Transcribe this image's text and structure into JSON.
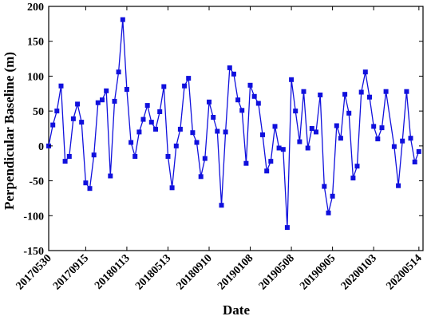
{
  "chart_data": {
    "type": "line",
    "title": "",
    "xlabel": "Date",
    "ylabel": "Perpendicular Baseline (m)",
    "ylim": [
      -150,
      200
    ],
    "yticks": [
      -150,
      -100,
      -50,
      0,
      50,
      100,
      150,
      200
    ],
    "xlim": [
      "2017-05-30",
      "2020-05-26"
    ],
    "xticks": [
      {
        "label": "20170530",
        "date": "2017-05-30"
      },
      {
        "label": "20170915",
        "date": "2017-09-15"
      },
      {
        "label": "20180113",
        "date": "2018-01-13"
      },
      {
        "label": "20180513",
        "date": "2018-05-13"
      },
      {
        "label": "20180910",
        "date": "2018-09-10"
      },
      {
        "label": "20190108",
        "date": "2019-01-08"
      },
      {
        "label": "20190508",
        "date": "2019-05-08"
      },
      {
        "label": "20190905",
        "date": "2019-09-05"
      },
      {
        "label": "20200103",
        "date": "2020-01-03"
      },
      {
        "label": "20200514",
        "date": "2020-05-14"
      }
    ],
    "grid": false,
    "legend": "none",
    "series_color": "#1010dd",
    "marker": "square",
    "series": [
      {
        "name": "",
        "points": [
          {
            "x": "2017-05-30",
            "y": 0
          },
          {
            "x": "2017-06-11",
            "y": 30
          },
          {
            "x": "2017-06-23",
            "y": 50
          },
          {
            "x": "2017-07-05",
            "y": 86
          },
          {
            "x": "2017-07-17",
            "y": -22
          },
          {
            "x": "2017-07-29",
            "y": -15
          },
          {
            "x": "2017-08-10",
            "y": 39
          },
          {
            "x": "2017-08-22",
            "y": 60
          },
          {
            "x": "2017-09-03",
            "y": 34
          },
          {
            "x": "2017-09-15",
            "y": -53
          },
          {
            "x": "2017-09-27",
            "y": -61
          },
          {
            "x": "2017-10-09",
            "y": -13
          },
          {
            "x": "2017-10-21",
            "y": 62
          },
          {
            "x": "2017-11-02",
            "y": 66
          },
          {
            "x": "2017-11-14",
            "y": 79
          },
          {
            "x": "2017-11-26",
            "y": -43
          },
          {
            "x": "2017-12-08",
            "y": 64
          },
          {
            "x": "2017-12-20",
            "y": 106
          },
          {
            "x": "2018-01-01",
            "y": 181
          },
          {
            "x": "2018-01-13",
            "y": 81
          },
          {
            "x": "2018-01-25",
            "y": 5
          },
          {
            "x": "2018-02-06",
            "y": -15
          },
          {
            "x": "2018-02-18",
            "y": 20
          },
          {
            "x": "2018-03-02",
            "y": 38
          },
          {
            "x": "2018-03-14",
            "y": 58
          },
          {
            "x": "2018-03-26",
            "y": 34
          },
          {
            "x": "2018-04-07",
            "y": 24
          },
          {
            "x": "2018-04-19",
            "y": 49
          },
          {
            "x": "2018-05-01",
            "y": 85
          },
          {
            "x": "2018-05-13",
            "y": -15
          },
          {
            "x": "2018-05-25",
            "y": -60
          },
          {
            "x": "2018-06-06",
            "y": 0
          },
          {
            "x": "2018-06-18",
            "y": 24
          },
          {
            "x": "2018-06-30",
            "y": 86
          },
          {
            "x": "2018-07-12",
            "y": 97
          },
          {
            "x": "2018-07-24",
            "y": 19
          },
          {
            "x": "2018-08-05",
            "y": 5
          },
          {
            "x": "2018-08-17",
            "y": -44
          },
          {
            "x": "2018-08-29",
            "y": -18
          },
          {
            "x": "2018-09-10",
            "y": 63
          },
          {
            "x": "2018-09-22",
            "y": 41
          },
          {
            "x": "2018-10-04",
            "y": 21
          },
          {
            "x": "2018-10-16",
            "y": -85
          },
          {
            "x": "2018-10-28",
            "y": 20
          },
          {
            "x": "2018-11-09",
            "y": 112
          },
          {
            "x": "2018-11-21",
            "y": 103
          },
          {
            "x": "2018-12-03",
            "y": 66
          },
          {
            "x": "2018-12-15",
            "y": 51
          },
          {
            "x": "2018-12-27",
            "y": -25
          },
          {
            "x": "2019-01-08",
            "y": 87
          },
          {
            "x": "2019-01-20",
            "y": 71
          },
          {
            "x": "2019-02-01",
            "y": 61
          },
          {
            "x": "2019-02-13",
            "y": 16
          },
          {
            "x": "2019-02-25",
            "y": -36
          },
          {
            "x": "2019-03-09",
            "y": -22
          },
          {
            "x": "2019-03-21",
            "y": 28
          },
          {
            "x": "2019-04-02",
            "y": -3
          },
          {
            "x": "2019-04-14",
            "y": -5
          },
          {
            "x": "2019-04-26",
            "y": -117
          },
          {
            "x": "2019-05-08",
            "y": 95
          },
          {
            "x": "2019-05-20",
            "y": 50
          },
          {
            "x": "2019-06-01",
            "y": 6
          },
          {
            "x": "2019-06-13",
            "y": 78
          },
          {
            "x": "2019-06-25",
            "y": -3
          },
          {
            "x": "2019-07-07",
            "y": 25
          },
          {
            "x": "2019-07-19",
            "y": 20
          },
          {
            "x": "2019-07-31",
            "y": 73
          },
          {
            "x": "2019-08-12",
            "y": -58
          },
          {
            "x": "2019-08-24",
            "y": -96
          },
          {
            "x": "2019-09-05",
            "y": -72
          },
          {
            "x": "2019-09-17",
            "y": 29
          },
          {
            "x": "2019-09-29",
            "y": 11
          },
          {
            "x": "2019-10-11",
            "y": 74
          },
          {
            "x": "2019-10-23",
            "y": 47
          },
          {
            "x": "2019-11-04",
            "y": -46
          },
          {
            "x": "2019-11-16",
            "y": -29
          },
          {
            "x": "2019-11-28",
            "y": 77
          },
          {
            "x": "2019-12-10",
            "y": 106
          },
          {
            "x": "2019-12-22",
            "y": 70
          },
          {
            "x": "2020-01-03",
            "y": 28
          },
          {
            "x": "2020-01-15",
            "y": 10
          },
          {
            "x": "2020-01-27",
            "y": 26
          },
          {
            "x": "2020-02-08",
            "y": 78
          },
          {
            "x": "2020-03-03",
            "y": -1
          },
          {
            "x": "2020-03-15",
            "y": -57
          },
          {
            "x": "2020-03-27",
            "y": 7
          },
          {
            "x": "2020-04-08",
            "y": 78
          },
          {
            "x": "2020-04-20",
            "y": 11
          },
          {
            "x": "2020-05-02",
            "y": -23
          },
          {
            "x": "2020-05-14",
            "y": -8
          }
        ]
      }
    ]
  }
}
